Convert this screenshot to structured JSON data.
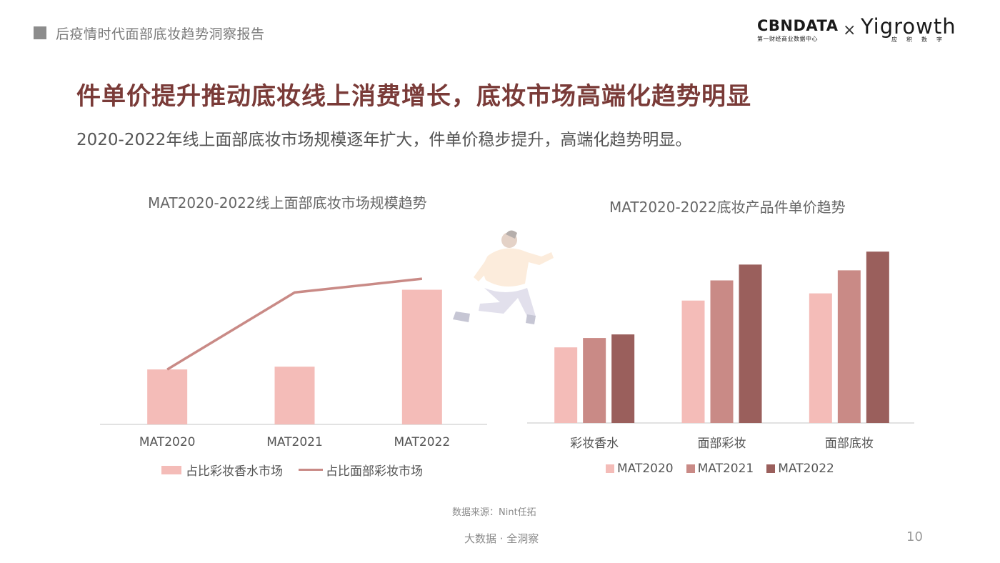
{
  "header": {
    "report_title": "后疫情时代面部底妆趋势洞察报告"
  },
  "logos": {
    "cbn_main": "CBNDATA",
    "cbn_sub": "第一财经商业数据中心",
    "separator": "×",
    "yi_main": "Yigrowth",
    "yi_sub": "应积数字"
  },
  "main": {
    "title": "件单价提升推动底妆线上消费增长，底妆市场高端化趋势明显",
    "subtitle": "2020-2022年线上面部底妆市场规模逐年扩大，件单价稳步提升，高端化趋势明显。"
  },
  "chart_data": [
    {
      "type": "bar+line",
      "title": "MAT2020-2022线上面部底妆市场规模趋势",
      "categories": [
        "MAT2020",
        "MAT2021",
        "MAT2022"
      ],
      "series": [
        {
          "name": "占比彩妆香水市场",
          "kind": "bar",
          "values": [
            0.2,
            0.21,
            0.49
          ],
          "color": "#f4bcb8"
        },
        {
          "name": "占比面部彩妆市场",
          "kind": "line",
          "values": [
            0.2,
            0.48,
            0.53
          ],
          "color": "#c98a86"
        }
      ],
      "ylim": [
        0,
        0.65
      ],
      "grid": false,
      "legend": "bottom"
    },
    {
      "type": "bar",
      "title": "MAT2020-2022底妆产品件单价趋势",
      "categories": [
        "彩妆香水",
        "面部彩妆",
        "面部底妆"
      ],
      "series": [
        {
          "name": "MAT2020",
          "values": [
            105,
            170,
            180
          ],
          "color": "#f4bcb8"
        },
        {
          "name": "MAT2021",
          "values": [
            118,
            198,
            212
          ],
          "color": "#c98a86"
        },
        {
          "name": "MAT2022",
          "values": [
            123,
            220,
            238
          ],
          "color": "#9a5f5c"
        }
      ],
      "ylim": [
        0,
        260
      ],
      "grid": false,
      "legend": "bottom"
    }
  ],
  "source": "数据来源：Nint任拓",
  "footer": "大数据 · 全洞察",
  "page_number": "10",
  "colors": {
    "title": "#7a3b38",
    "bar_light": "#f4bcb8",
    "bar_mid": "#c98a86",
    "bar_dark": "#9a5f5c"
  }
}
